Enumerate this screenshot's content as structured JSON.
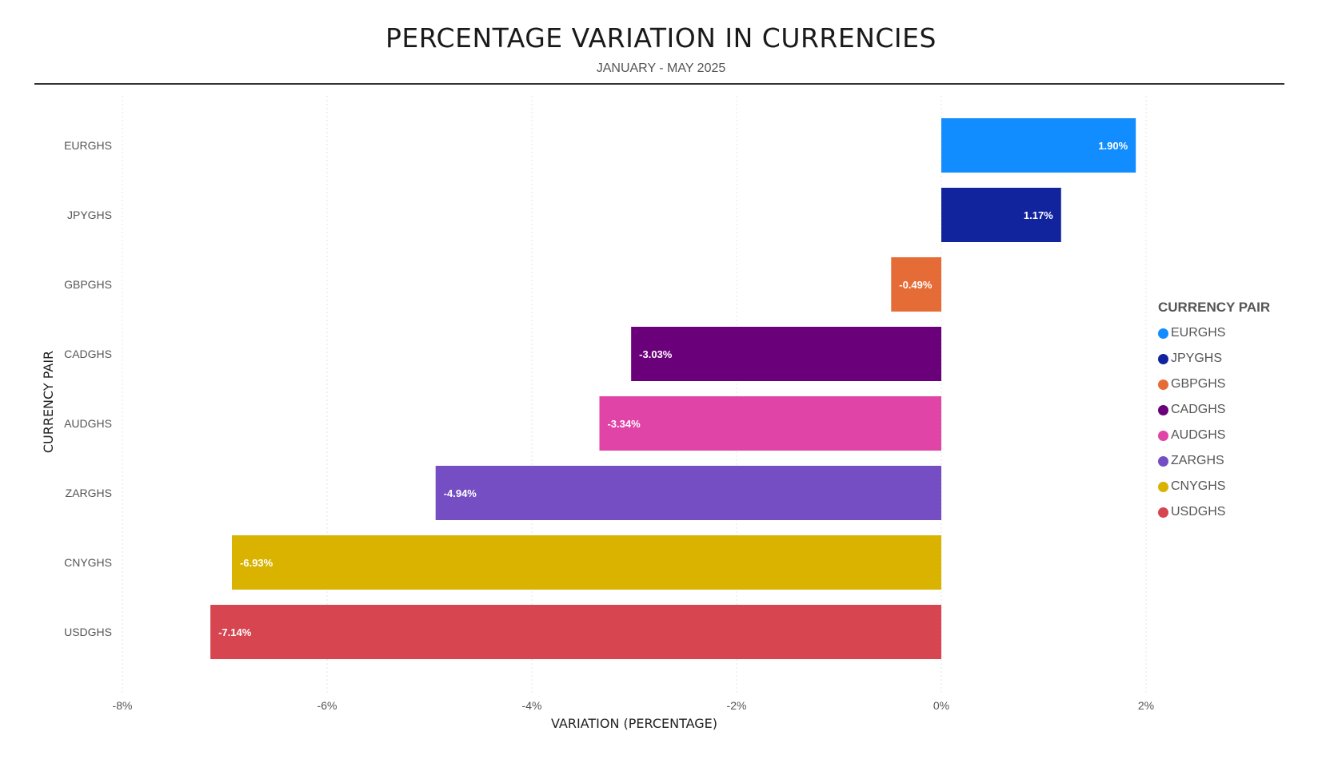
{
  "title": "PERCENTAGE VARIATION IN CURRENCIES",
  "subtitle": "JANUARY - MAY 2025",
  "legend": {
    "title": "CURRENCY PAIR",
    "items": [
      {
        "label": "EURGHS",
        "color": "#118DFF"
      },
      {
        "label": "JPYGHS",
        "color": "#12239E"
      },
      {
        "label": "GBPGHS",
        "color": "#E66C37"
      },
      {
        "label": "CADGHS",
        "color": "#6B007B"
      },
      {
        "label": "AUDGHS",
        "color": "#E044A7"
      },
      {
        "label": "ZARGHS",
        "color": "#744EC2"
      },
      {
        "label": "CNYGHS",
        "color": "#D9B300"
      },
      {
        "label": "USDGHS",
        "color": "#D64550"
      }
    ]
  },
  "chart_data": {
    "type": "bar",
    "orientation": "horizontal",
    "title": "PERCENTAGE VARIATION IN CURRENCIES",
    "subtitle": "JANUARY - MAY 2025",
    "xlabel": "VARIATION (PERCENTAGE)",
    "ylabel": "CURRENCY PAIR",
    "categories": [
      "EURGHS",
      "JPYGHS",
      "GBPGHS",
      "CADGHS",
      "AUDGHS",
      "ZARGHS",
      "CNYGHS",
      "USDGHS"
    ],
    "values": [
      1.9,
      1.17,
      -0.49,
      -3.03,
      -3.34,
      -4.94,
      -6.93,
      -7.14
    ],
    "data_labels": [
      "1.90%",
      "1.17%",
      "-0.49%",
      "-3.03%",
      "-3.34%",
      "-4.94%",
      "-6.93%",
      "-7.14%"
    ],
    "colors": [
      "#118DFF",
      "#12239E",
      "#E66C37",
      "#6B007B",
      "#E044A7",
      "#744EC2",
      "#D9B300",
      "#D64550"
    ],
    "xlim": [
      -8,
      2
    ],
    "xticks": [
      -8,
      -6,
      -4,
      -2,
      0,
      2
    ],
    "xtick_labels": [
      "-8%",
      "-6%",
      "-4%",
      "-2%",
      "0%",
      "2%"
    ],
    "grid": true,
    "legend_position": "right"
  }
}
